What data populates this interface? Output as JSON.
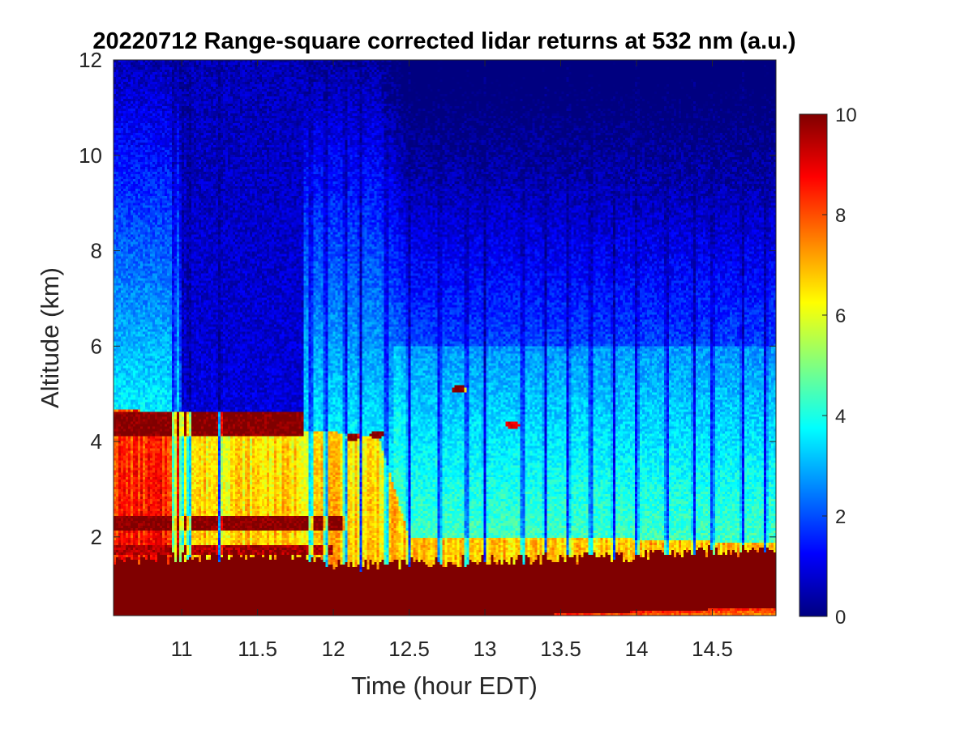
{
  "chart_data": {
    "type": "heatmap",
    "title": "20220712  Range-square corrected lidar returns at 532 nm (a.u.)",
    "xlabel": "Time (hour EDT)",
    "ylabel": "Altitude (km)",
    "xlim": [
      10.55,
      14.92
    ],
    "ylim": [
      0.35,
      12
    ],
    "xticks": [
      11,
      11.5,
      12,
      12.5,
      13,
      13.5,
      14,
      14.5
    ],
    "xtick_labels": [
      "11",
      "11.5",
      "12",
      "12.5",
      "13",
      "13.5",
      "14",
      "14.5"
    ],
    "yticks": [
      2,
      4,
      6,
      8,
      10,
      12
    ],
    "ytick_labels": [
      "2",
      "4",
      "6",
      "8",
      "10",
      "12"
    ],
    "colorbar": {
      "colormap": "jet",
      "range": [
        0,
        10
      ],
      "ticks": [
        0,
        2,
        4,
        6,
        8,
        10
      ],
      "tick_labels": [
        "0",
        "2",
        "4",
        "6",
        "8",
        "10"
      ]
    },
    "colorbar_stops": [
      "#000080",
      "#0000ff",
      "#0080ff",
      "#00ffff",
      "#80ff80",
      "#ffff00",
      "#ff8000",
      "#ff0000",
      "#800000"
    ],
    "time_nodes": [
      10.55,
      10.9,
      11.3,
      11.75,
      12.0,
      12.3,
      12.5,
      13.0,
      13.5,
      14.0,
      14.5,
      14.92
    ],
    "features": {
      "boundary_layer_top_km": [
        1.5,
        1.55,
        1.6,
        1.65,
        1.4,
        1.4,
        1.45,
        1.5,
        1.55,
        1.6,
        1.7,
        1.75
      ],
      "residual_layer_top_km": [
        4.7,
        4.6,
        4.4,
        4.2,
        4.2,
        4.1,
        2.0,
        2.0,
        2.0,
        1.95,
        1.9,
        1.9
      ],
      "aerosol_layers_km": [
        {
          "t_start": 10.55,
          "t_end": 11.8,
          "bottom": 4.1,
          "top": 4.6,
          "value": 10
        },
        {
          "t_start": 10.55,
          "t_end": 12.1,
          "bottom": 2.15,
          "top": 2.45,
          "value": 10
        },
        {
          "t_start": 10.55,
          "t_end": 12.0,
          "bottom": 1.6,
          "top": 1.85,
          "value": 9.5
        }
      ],
      "cloud_patches": [
        {
          "t": 12.83,
          "alt": 5.1,
          "value": 10
        },
        {
          "t": 12.13,
          "alt": 4.1,
          "value": 10
        },
        {
          "t": 12.29,
          "alt": 4.15,
          "value": 10
        },
        {
          "t": 11.4,
          "alt": 4.45,
          "value": 10
        },
        {
          "t": 13.18,
          "alt": 4.35,
          "value": 9
        }
      ],
      "clear_band_times": [
        10.95,
        11.0,
        11.05,
        11.25,
        11.85,
        11.95,
        12.08,
        12.18,
        12.35,
        12.5,
        12.7,
        12.88,
        13.0,
        13.25,
        13.4,
        13.55,
        13.7,
        13.85,
        14.0,
        14.2,
        14.38,
        14.5,
        14.7,
        14.85
      ]
    }
  }
}
